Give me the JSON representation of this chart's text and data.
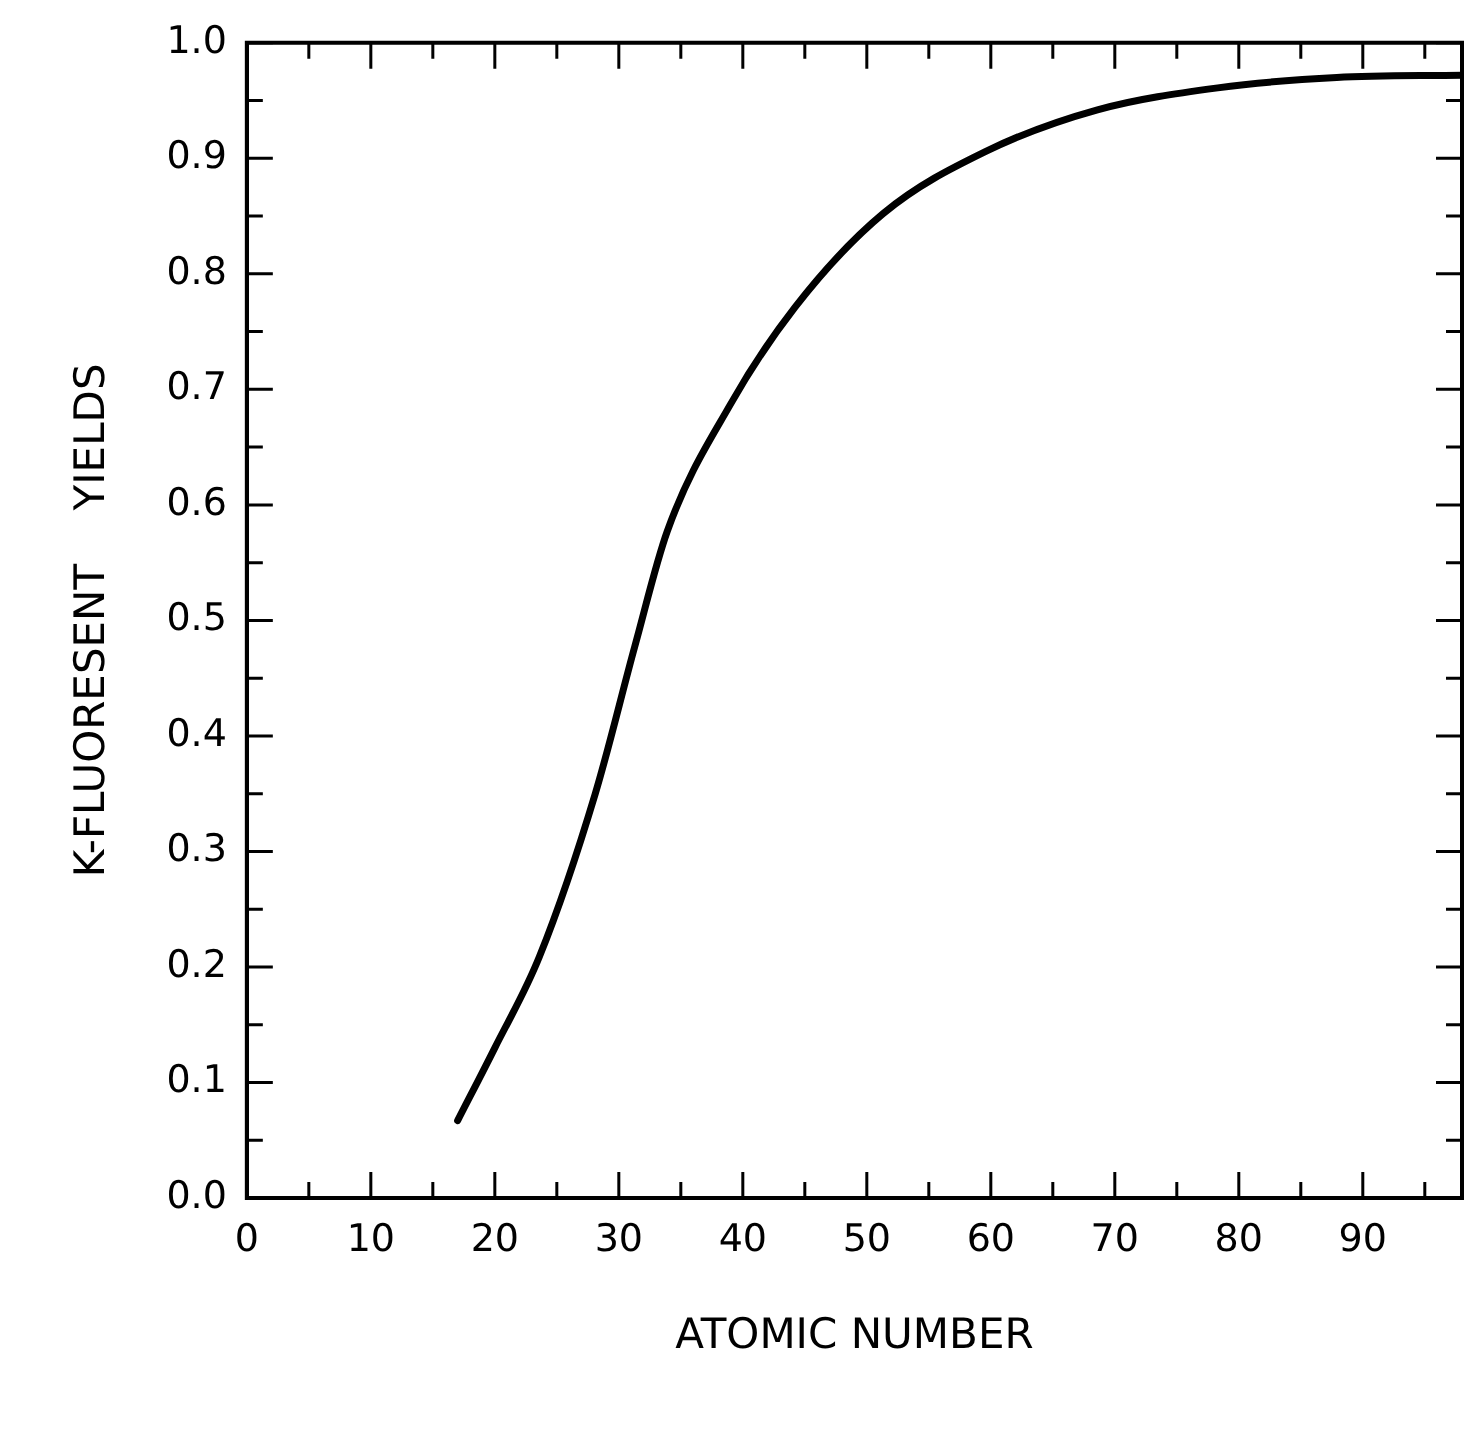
{
  "chart_data": {
    "type": "line",
    "xlabel": "ATOMIC NUMBER",
    "ylabel": "K-FLUORESENT    YIELDS",
    "x": [
      17,
      20,
      23.6,
      28.1,
      31.3,
      33.9,
      39,
      44.2,
      51.3,
      59.6,
      68.6,
      78.3,
      87.9,
      98
    ],
    "series": [
      {
        "color": "#000000",
        "values": [
          0.067,
          0.13,
          0.209,
          0.35,
          0.478,
          0.577,
          0.687,
          0.771,
          0.852,
          0.906,
          0.942,
          0.961,
          0.97,
          0.972
        ]
      }
    ],
    "xlim": [
      0,
      98
    ],
    "xticks": [
      0,
      {
        "value": 5,
        "label": null
      },
      10,
      {
        "value": 15,
        "label": null
      },
      20,
      {
        "value": 25,
        "label": null
      },
      30,
      {
        "value": 35,
        "label": null
      },
      40,
      {
        "value": 45,
        "label": null
      },
      50,
      {
        "value": 55,
        "label": null
      },
      60,
      {
        "value": 65,
        "label": null
      },
      70,
      {
        "value": 75,
        "label": null
      },
      80,
      {
        "value": 85,
        "label": null
      },
      90,
      {
        "value": 95,
        "label": null
      }
    ],
    "ylim": [
      0,
      1
    ],
    "yticks": [
      {
        "value": 0,
        "label": "0.0"
      },
      {
        "value": 0.05,
        "label": null
      },
      0.1,
      {
        "value": 0.15,
        "label": null
      },
      0.2,
      {
        "value": 0.25,
        "label": null
      },
      0.3,
      {
        "value": 0.35,
        "label": null
      },
      0.4,
      {
        "value": 0.45,
        "label": null
      },
      0.5,
      {
        "value": 0.55,
        "label": null
      },
      0.6,
      {
        "value": 0.65,
        "label": null
      },
      0.7,
      {
        "value": 0.75,
        "label": null
      },
      0.8,
      {
        "value": 0.85,
        "label": null
      },
      0.9,
      {
        "value": 0.95,
        "label": null
      },
      {
        "value": 1,
        "label": "1.0"
      }
    ],
    "grid": false,
    "legend": false,
    "marker": "none",
    "line_style": "solid"
  }
}
